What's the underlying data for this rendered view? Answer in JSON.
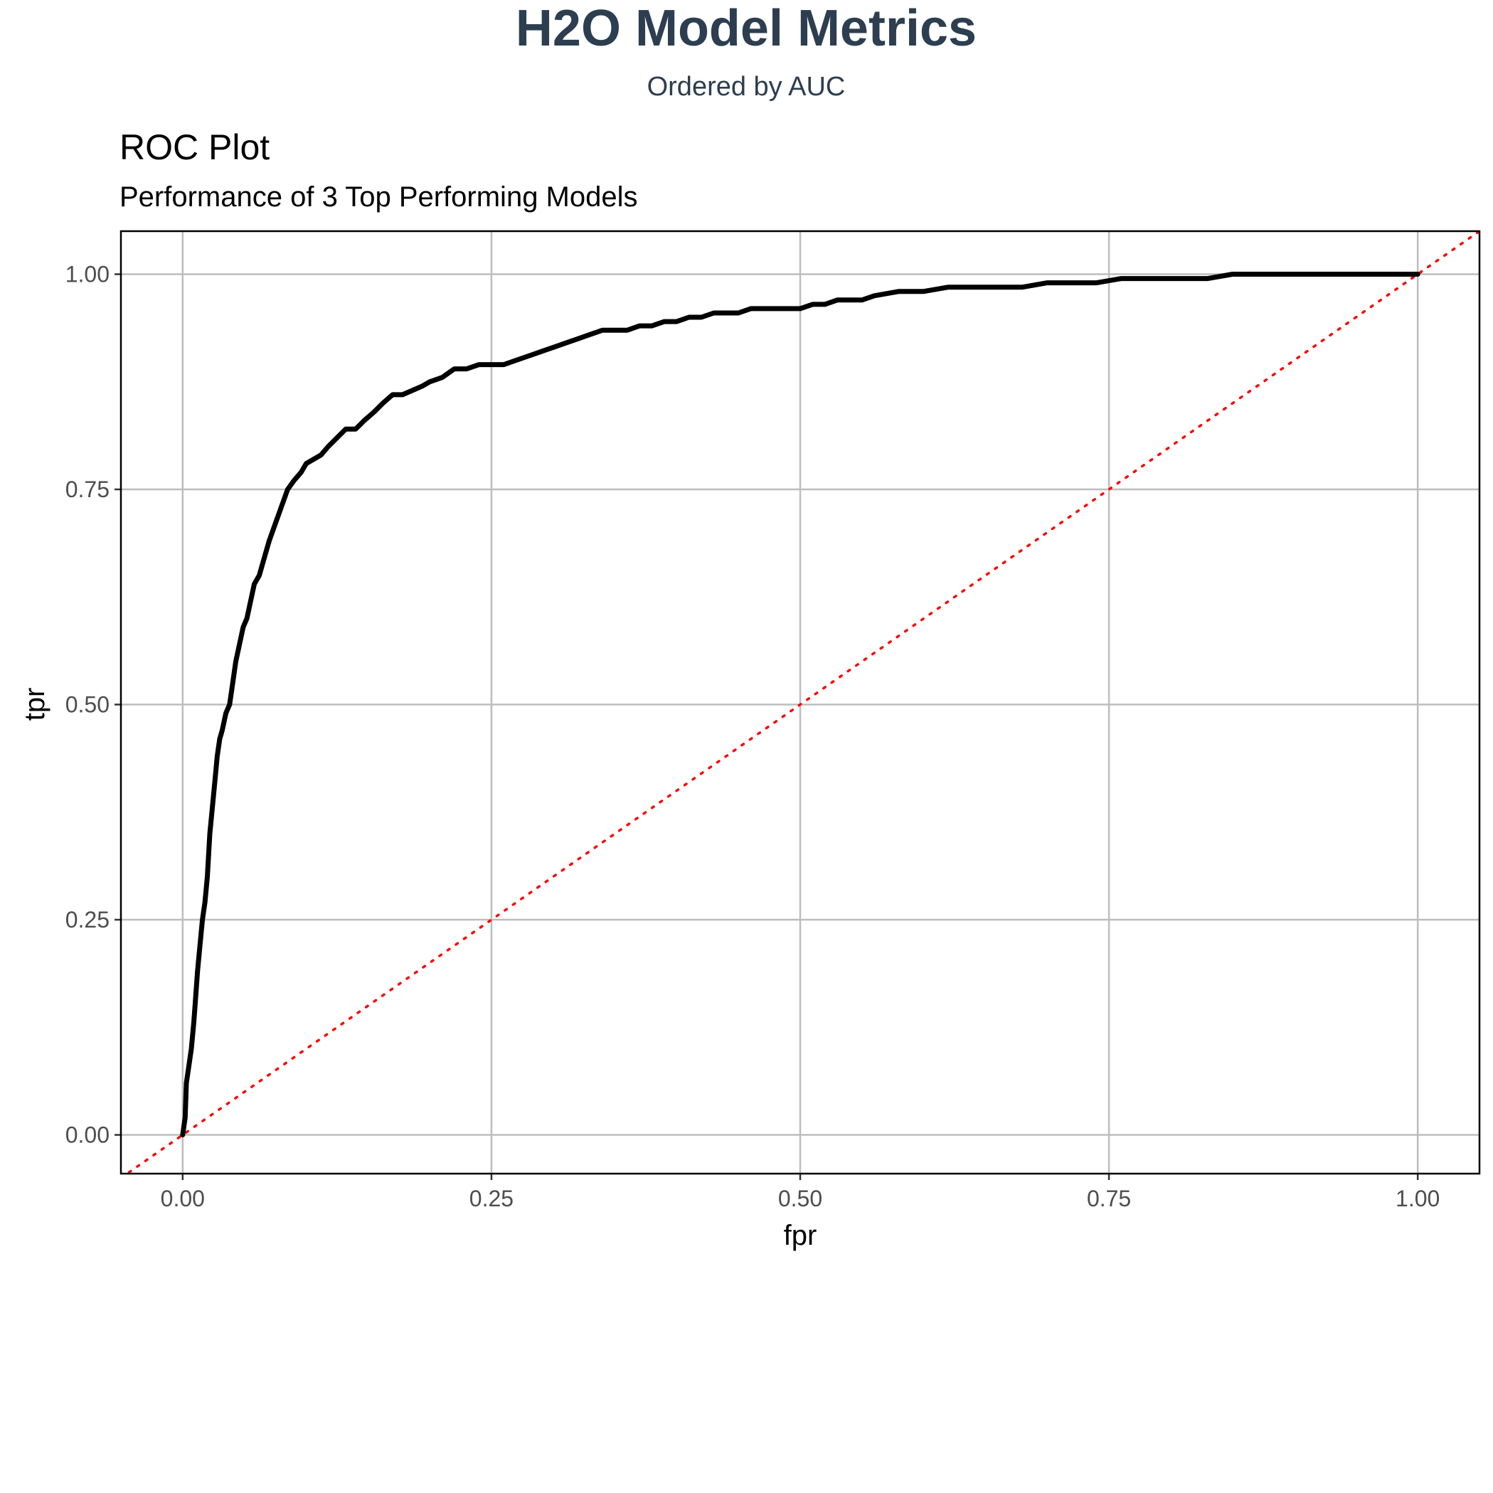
{
  "header": {
    "title": "H2O Model Metrics",
    "subtitle": "Ordered by AUC"
  },
  "chart_data": {
    "type": "line",
    "title": "ROC Plot",
    "subtitle": "Performance of 3 Top Performing Models",
    "xlabel": "fpr",
    "ylabel": "tpr",
    "xlim": [
      -0.05,
      1.05
    ],
    "ylim": [
      -0.045,
      1.05
    ],
    "x_ticks": [
      0,
      0.25,
      0.5,
      0.75,
      1
    ],
    "x_tick_labels": [
      "0.00",
      "0.25",
      "0.50",
      "0.75",
      "1.00"
    ],
    "y_ticks": [
      0,
      0.25,
      0.5,
      0.75,
      1
    ],
    "y_tick_labels": [
      "0.00",
      "0.25",
      "0.50",
      "0.75",
      "1.00"
    ],
    "grid": true,
    "series": [
      {
        "color": "#000000",
        "style": "solid",
        "x": [
          0.0,
          0.002,
          0.003,
          0.005,
          0.007,
          0.009,
          0.01,
          0.012,
          0.014,
          0.016,
          0.018,
          0.02,
          0.022,
          0.024,
          0.026,
          0.028,
          0.03,
          0.032,
          0.035,
          0.038,
          0.04,
          0.043,
          0.046,
          0.049,
          0.052,
          0.055,
          0.058,
          0.062,
          0.066,
          0.07,
          0.075,
          0.08,
          0.085,
          0.09,
          0.096,
          0.1,
          0.106,
          0.112,
          0.118,
          0.125,
          0.132,
          0.14,
          0.147,
          0.155,
          0.162,
          0.17,
          0.178,
          0.186,
          0.194,
          0.2,
          0.21,
          0.22,
          0.23,
          0.24,
          0.25,
          0.26,
          0.27,
          0.28,
          0.29,
          0.3,
          0.31,
          0.32,
          0.33,
          0.34,
          0.35,
          0.36,
          0.37,
          0.38,
          0.39,
          0.4,
          0.41,
          0.42,
          0.43,
          0.44,
          0.45,
          0.46,
          0.47,
          0.48,
          0.49,
          0.5,
          0.51,
          0.52,
          0.53,
          0.54,
          0.55,
          0.56,
          0.58,
          0.6,
          0.62,
          0.64,
          0.66,
          0.68,
          0.7,
          0.72,
          0.74,
          0.76,
          0.78,
          0.8,
          0.83,
          0.85,
          0.88,
          0.9,
          0.95,
          1.0
        ],
        "y": [
          0.0,
          0.02,
          0.06,
          0.08,
          0.1,
          0.13,
          0.15,
          0.19,
          0.22,
          0.25,
          0.27,
          0.3,
          0.35,
          0.38,
          0.41,
          0.44,
          0.46,
          0.47,
          0.49,
          0.5,
          0.52,
          0.55,
          0.57,
          0.59,
          0.6,
          0.62,
          0.64,
          0.65,
          0.67,
          0.69,
          0.71,
          0.73,
          0.75,
          0.76,
          0.77,
          0.78,
          0.785,
          0.79,
          0.8,
          0.81,
          0.82,
          0.82,
          0.83,
          0.84,
          0.85,
          0.86,
          0.86,
          0.865,
          0.87,
          0.875,
          0.88,
          0.89,
          0.89,
          0.895,
          0.895,
          0.895,
          0.9,
          0.905,
          0.91,
          0.915,
          0.92,
          0.925,
          0.93,
          0.935,
          0.935,
          0.935,
          0.94,
          0.94,
          0.945,
          0.945,
          0.95,
          0.95,
          0.955,
          0.955,
          0.955,
          0.96,
          0.96,
          0.96,
          0.96,
          0.96,
          0.965,
          0.965,
          0.97,
          0.97,
          0.97,
          0.975,
          0.98,
          0.98,
          0.985,
          0.985,
          0.985,
          0.985,
          0.99,
          0.99,
          0.99,
          0.995,
          0.995,
          0.995,
          0.995,
          1.0,
          1.0,
          1.0,
          1.0,
          1.0
        ]
      },
      {
        "color": "#ff0000",
        "style": "dotted",
        "x": [
          -0.05,
          1.05
        ],
        "y": [
          -0.05,
          1.05
        ]
      }
    ]
  }
}
